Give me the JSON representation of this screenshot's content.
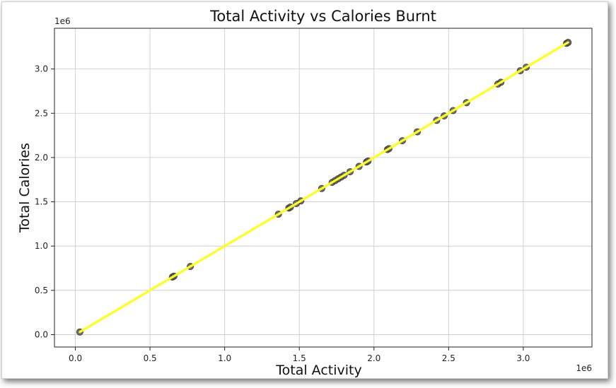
{
  "chart_data": {
    "type": "scatter",
    "title": "Total Activity vs Calories Burnt",
    "xlabel": "Total Activity",
    "ylabel": "Total Calories",
    "x_offset_label": "1e6",
    "y_offset_label": "1e6",
    "xlim": [
      -0.14,
      3.46
    ],
    "ylim": [
      -0.14,
      3.46
    ],
    "xticks": [
      0.0,
      0.5,
      1.0,
      1.5,
      2.0,
      2.5,
      3.0
    ],
    "xtick_labels": [
      "0.0",
      "0.5",
      "1.0",
      "1.5",
      "2.0",
      "2.5",
      "3.0"
    ],
    "yticks": [
      0.0,
      0.5,
      1.0,
      1.5,
      2.0,
      2.5,
      3.0
    ],
    "ytick_labels": [
      "0.0",
      "0.5",
      "1.0",
      "1.5",
      "2.0",
      "2.5",
      "3.0"
    ],
    "grid": true,
    "series": [
      {
        "points": [
          [
            0.03,
            0.03
          ],
          [
            0.65,
            0.65
          ],
          [
            0.66,
            0.66
          ],
          [
            0.77,
            0.77
          ],
          [
            1.36,
            1.36
          ],
          [
            1.43,
            1.43
          ],
          [
            1.44,
            1.44
          ],
          [
            1.48,
            1.48
          ],
          [
            1.51,
            1.51
          ],
          [
            1.65,
            1.65
          ],
          [
            1.72,
            1.72
          ],
          [
            1.74,
            1.74
          ],
          [
            1.76,
            1.76
          ],
          [
            1.78,
            1.78
          ],
          [
            1.8,
            1.8
          ],
          [
            1.84,
            1.84
          ],
          [
            1.9,
            1.9
          ],
          [
            1.95,
            1.95
          ],
          [
            1.96,
            1.96
          ],
          [
            2.09,
            2.09
          ],
          [
            2.1,
            2.1
          ],
          [
            2.19,
            2.19
          ],
          [
            2.29,
            2.29
          ],
          [
            2.42,
            2.42
          ],
          [
            2.47,
            2.47
          ],
          [
            2.53,
            2.53
          ],
          [
            2.62,
            2.62
          ],
          [
            2.83,
            2.83
          ],
          [
            2.85,
            2.85
          ],
          [
            2.98,
            2.98
          ],
          [
            3.02,
            3.02
          ],
          [
            3.29,
            3.29
          ],
          [
            3.3,
            3.3
          ]
        ],
        "color": "#555555"
      }
    ],
    "trend_line": {
      "x": [
        0.03,
        3.3
      ],
      "y": [
        0.03,
        3.3
      ],
      "color": "#ffff1a"
    }
  }
}
